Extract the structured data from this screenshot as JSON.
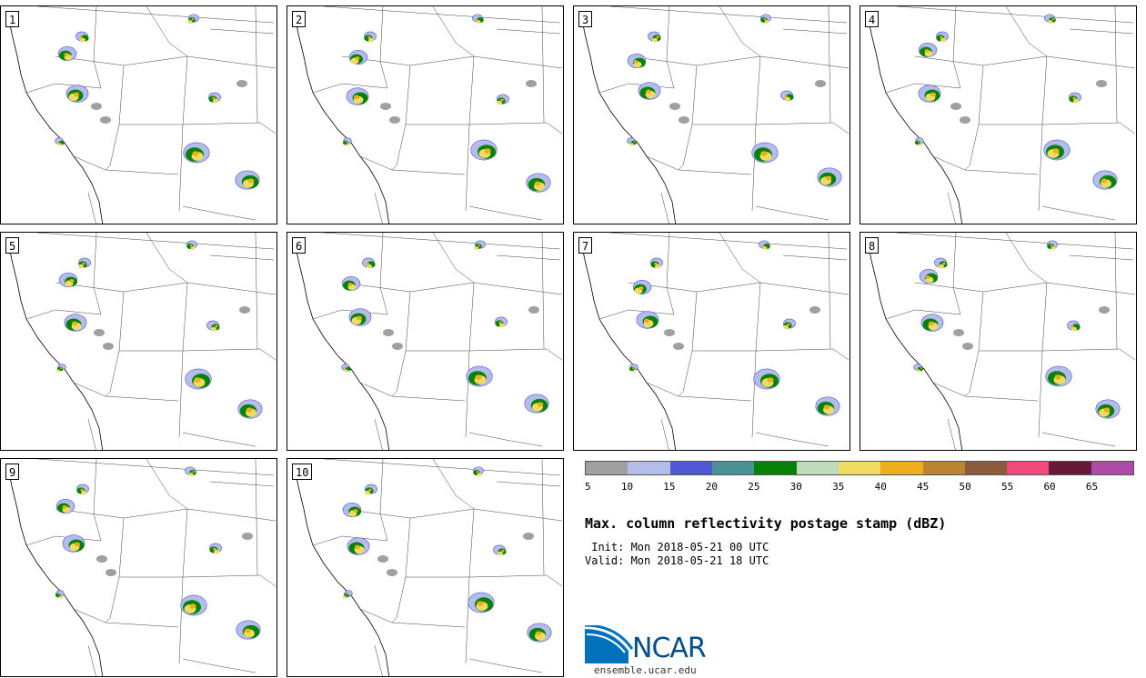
{
  "title": "Max. column reflectivity postage stamp (dBZ)",
  "init": " Init: Mon 2018-05-21 00 UTC",
  "valid": "Valid: Mon 2018-05-21 18 UTC",
  "members": [
    "1",
    "2",
    "3",
    "4",
    "5",
    "6",
    "7",
    "8",
    "9",
    "10"
  ],
  "colorbar": {
    "ticks": [
      "5",
      "10",
      "15",
      "20",
      "25",
      "30",
      "35",
      "40",
      "45",
      "50",
      "55",
      "60",
      "65"
    ],
    "colors": [
      "#a0a0a0",
      "#b4bcec",
      "#5058d4",
      "#4a9296",
      "#068206",
      "#bcdcbc",
      "#f0dc62",
      "#eeae1e",
      "#ba8432",
      "#8c5a3c",
      "#f04a7a",
      "#661838",
      "#ac4ca8"
    ]
  },
  "logo": {
    "brand": "NCAR",
    "url": "ensemble.ucar.edu",
    "colors": {
      "blue": "#0072bc",
      "dark": "#004f8a"
    }
  }
}
